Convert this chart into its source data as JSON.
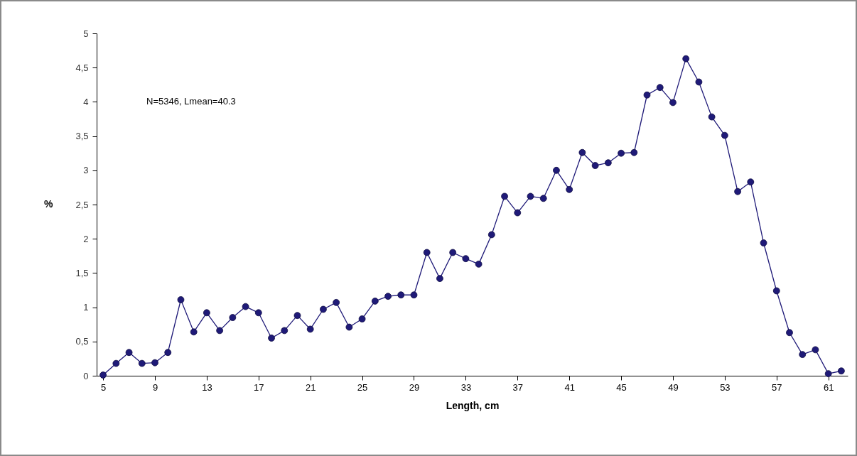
{
  "chart_data": {
    "type": "line",
    "xlabel": "Length, cm",
    "ylabel": "%",
    "annotations": [
      "N=5346, Lmean=40.3"
    ],
    "x": [
      5,
      6,
      7,
      8,
      9,
      10,
      11,
      12,
      13,
      14,
      15,
      16,
      17,
      18,
      19,
      20,
      21,
      22,
      23,
      24,
      25,
      26,
      27,
      28,
      29,
      30,
      31,
      32,
      33,
      34,
      35,
      36,
      37,
      38,
      39,
      40,
      41,
      42,
      43,
      44,
      45,
      46,
      47,
      48,
      49,
      50,
      51,
      52,
      53,
      54,
      55,
      56,
      57,
      58,
      59,
      60,
      61,
      62
    ],
    "series": [
      {
        "color": "#1f1a78",
        "values": [
          0.01,
          0.18,
          0.34,
          0.18,
          0.19,
          0.34,
          1.11,
          0.64,
          0.92,
          0.66,
          0.85,
          1.01,
          0.92,
          0.55,
          0.66,
          0.88,
          0.68,
          0.97,
          1.07,
          0.71,
          0.83,
          1.09,
          1.16,
          1.18,
          1.18,
          1.8,
          1.42,
          1.8,
          1.71,
          1.63,
          2.06,
          2.62,
          2.38,
          2.62,
          2.59,
          3.0,
          2.72,
          3.26,
          3.07,
          3.11,
          3.25,
          3.26,
          4.1,
          4.21,
          3.99,
          4.63,
          4.29,
          3.78,
          3.51,
          2.69,
          2.83,
          1.94,
          1.24,
          0.63,
          0.31,
          0.38,
          0.03,
          0.07
        ]
      }
    ],
    "xlim": [
      4.5,
      62.5
    ],
    "xticks": [
      5,
      9,
      13,
      17,
      21,
      25,
      29,
      33,
      37,
      41,
      45,
      49,
      53,
      57,
      61
    ],
    "ylim": [
      0,
      5
    ],
    "yticks": [
      0,
      {
        "value": 0.5,
        "label": "0,5"
      },
      1,
      {
        "value": 1.5,
        "label": "1,5"
      },
      2,
      {
        "value": 2.5,
        "label": "2,5"
      },
      3,
      {
        "value": 3.5,
        "label": "3,5"
      },
      4,
      {
        "value": 4.5,
        "label": "4,5"
      },
      5
    ],
    "grid": false,
    "marker": "circle",
    "line_style": "solid"
  }
}
